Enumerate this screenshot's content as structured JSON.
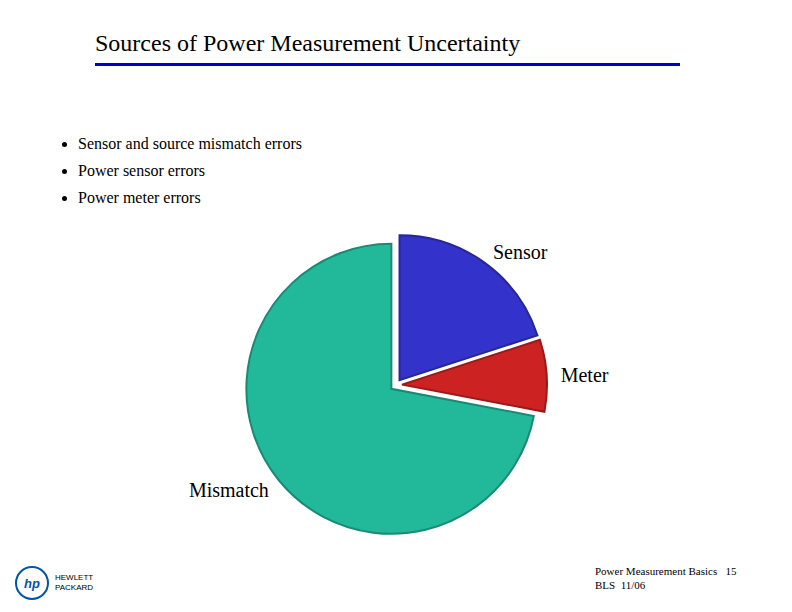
{
  "chart_data": {
    "type": "pie",
    "title": "Sources of Power Measurement Uncertainty",
    "categories": [
      "Sensor",
      "Meter",
      "Mismatch"
    ],
    "values": [
      20,
      8,
      72
    ],
    "colors": [
      "#3333CC",
      "#CC2222",
      "#22B89A"
    ],
    "annotations": [
      "Sensor and source mismatch errors",
      "Power sensor errors",
      "Power meter errors"
    ],
    "footer": [
      "Power Measurement Basics   15",
      "BLS  11/06"
    ],
    "logo": [
      "hp",
      "HEWLETT",
      "PACKARD"
    ]
  }
}
